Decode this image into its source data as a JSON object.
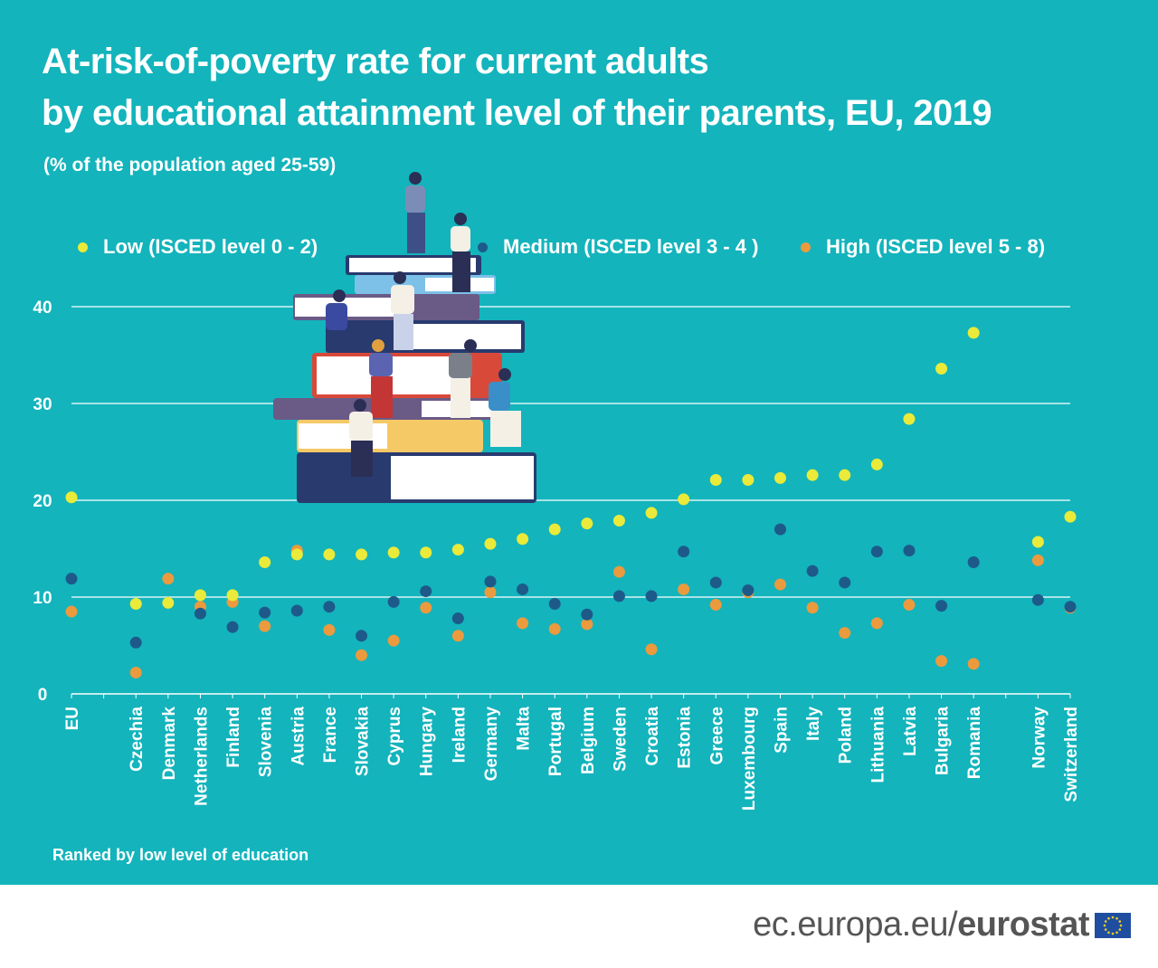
{
  "title_lines": [
    "At-risk-of-poverty rate for current adults",
    "by educational attainment level of their parents, EU, 2019"
  ],
  "subtitle": "(% of the population aged 25-59)",
  "note": "Ranked by low level of education",
  "footer": {
    "site": "ec.europa.eu/",
    "brand": "eurostat"
  },
  "colors": {
    "background": "#13b4bc",
    "low": "#eaea3a",
    "medium": "#1d5a8a",
    "high": "#eb9a3e",
    "grid": "#ffffff"
  },
  "chart_data": {
    "type": "scatter",
    "title": "At-risk-of-poverty rate for current adults by educational attainment level of their parents, EU, 2019",
    "subtitle": "(% of the population aged 25-59)",
    "ylim": [
      0,
      40
    ],
    "yticks": [
      0,
      10,
      20,
      30,
      40
    ],
    "grid": true,
    "legend_position": "top",
    "categories": [
      "EU",
      "Czechia",
      "Denmark",
      "Netherlands",
      "Finland",
      "Slovenia",
      "Austria",
      "France",
      "Slovakia",
      "Cyprus",
      "Hungary",
      "Ireland",
      "Germany",
      "Malta",
      "Portugal",
      "Belgium",
      "Sweden",
      "Croatia",
      "Estonia",
      "Greece",
      "Luxembourg",
      "Spain",
      "Italy",
      "Poland",
      "Lithuania",
      "Latvia",
      "Bulgaria",
      "Romania",
      "Norway",
      "Switzerland"
    ],
    "series": [
      {
        "name": "Low (ISCED level 0 - 2)",
        "values": [
          20.3,
          9.3,
          9.4,
          10.2,
          10.2,
          13.6,
          14.4,
          14.4,
          14.4,
          14.6,
          14.6,
          14.9,
          15.5,
          16.0,
          17.0,
          17.6,
          17.9,
          18.7,
          20.1,
          22.1,
          22.1,
          22.3,
          22.6,
          22.6,
          23.7,
          28.4,
          33.6,
          37.3,
          15.7,
          18.3
        ]
      },
      {
        "name": "Medium (ISCED level 3 - 4 )",
        "values": [
          11.9,
          5.3,
          9.4,
          8.3,
          6.9,
          8.4,
          8.6,
          9.0,
          6.0,
          9.5,
          10.6,
          7.8,
          11.6,
          10.8,
          9.3,
          8.2,
          10.1,
          10.1,
          14.7,
          11.5,
          10.7,
          17.0,
          12.7,
          11.5,
          14.7,
          14.8,
          9.1,
          13.6,
          9.7,
          9.0
        ]
      },
      {
        "name": "High (ISCED level 5 - 8)",
        "values": [
          8.5,
          2.2,
          11.9,
          9.0,
          9.5,
          7.0,
          14.8,
          6.6,
          4.0,
          5.5,
          8.9,
          6.0,
          10.5,
          7.3,
          6.7,
          7.2,
          12.6,
          4.6,
          10.8,
          9.2,
          10.5,
          11.3,
          8.9,
          6.3,
          7.3,
          9.2,
          3.4,
          3.1,
          13.8,
          8.9
        ]
      }
    ]
  }
}
